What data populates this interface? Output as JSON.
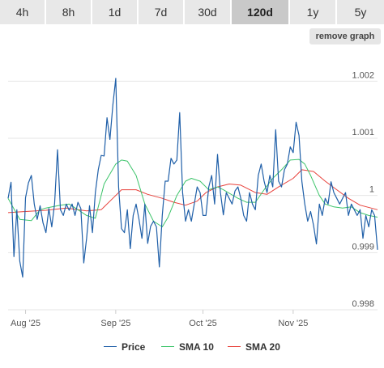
{
  "tabs": [
    {
      "label": "4h",
      "active": false
    },
    {
      "label": "8h",
      "active": false
    },
    {
      "label": "1d",
      "active": false
    },
    {
      "label": "7d",
      "active": false
    },
    {
      "label": "30d",
      "active": false
    },
    {
      "label": "120d",
      "active": true
    },
    {
      "label": "1y",
      "active": false
    },
    {
      "label": "5y",
      "active": false
    }
  ],
  "remove_graph_label": "remove graph",
  "colors": {
    "price": "#1f5fa8",
    "sma10": "#3cc46a",
    "sma20": "#e8413b",
    "grid": "#e6e6e6",
    "axis_text": "#555555"
  },
  "chart_data": {
    "type": "line",
    "title": "",
    "xlabel": "",
    "ylabel": "",
    "x_range": [
      "2025-07-26",
      "2025-11-30"
    ],
    "x_ticks": [
      {
        "date": "2025-08-01",
        "label": "Aug '25"
      },
      {
        "date": "2025-09-01",
        "label": "Sep '25"
      },
      {
        "date": "2025-10-01",
        "label": "Oct '25"
      },
      {
        "date": "2025-11-01",
        "label": "Nov '25"
      }
    ],
    "ylim": [
      0.998,
      1.0025
    ],
    "y_ticks": [
      {
        "value": 0.998,
        "label": "0.998"
      },
      {
        "value": 0.999,
        "label": "0.999"
      },
      {
        "value": 1.0,
        "label": "1"
      },
      {
        "value": 1.001,
        "label": "1.001"
      },
      {
        "value": 1.002,
        "label": "1.002"
      }
    ],
    "grid": true,
    "legend_position": "bottom",
    "series": [
      {
        "name": "Price",
        "points": [
          [
            "2025-07-26",
            0.99995
          ],
          [
            "2025-07-27",
            1.00023
          ],
          [
            "2025-07-28",
            0.99893
          ],
          [
            "2025-07-29",
            0.99975
          ],
          [
            "2025-07-30",
            0.99885
          ],
          [
            "2025-07-31",
            0.99857
          ],
          [
            "2025-08-01",
            0.99996
          ],
          [
            "2025-08-02",
            1.00022
          ],
          [
            "2025-08-03",
            1.00035
          ],
          [
            "2025-08-04",
            0.99985
          ],
          [
            "2025-08-05",
            0.99958
          ],
          [
            "2025-08-06",
            0.99982
          ],
          [
            "2025-08-07",
            0.99952
          ],
          [
            "2025-08-08",
            0.99935
          ],
          [
            "2025-08-09",
            0.99977
          ],
          [
            "2025-08-10",
            0.99945
          ],
          [
            "2025-08-11",
            0.99986
          ],
          [
            "2025-08-12",
            1.0008
          ],
          [
            "2025-08-13",
            0.99975
          ],
          [
            "2025-08-14",
            0.99965
          ],
          [
            "2025-08-15",
            0.99985
          ],
          [
            "2025-08-16",
            0.99974
          ],
          [
            "2025-08-17",
            0.99985
          ],
          [
            "2025-08-18",
            0.99965
          ],
          [
            "2025-08-19",
            0.99988
          ],
          [
            "2025-08-20",
            0.99977
          ],
          [
            "2025-08-21",
            0.99882
          ],
          [
            "2025-08-22",
            0.99925
          ],
          [
            "2025-08-23",
            0.99982
          ],
          [
            "2025-08-24",
            0.99935
          ],
          [
            "2025-08-25",
            1.00005
          ],
          [
            "2025-08-26",
            1.00045
          ],
          [
            "2025-08-27",
            1.0007
          ],
          [
            "2025-08-28",
            1.00069
          ],
          [
            "2025-08-29",
            1.00136
          ],
          [
            "2025-08-30",
            1.00098
          ],
          [
            "2025-08-31",
            1.00158
          ],
          [
            "2025-09-01",
            1.00205
          ],
          [
            "2025-09-02",
            1.00015
          ],
          [
            "2025-09-03",
            0.99942
          ],
          [
            "2025-09-04",
            0.99935
          ],
          [
            "2025-09-05",
            0.99975
          ],
          [
            "2025-09-06",
            0.99907
          ],
          [
            "2025-09-07",
            0.99965
          ],
          [
            "2025-09-08",
            0.99985
          ],
          [
            "2025-09-09",
            0.99958
          ],
          [
            "2025-09-10",
            0.99925
          ],
          [
            "2025-09-11",
            0.99985
          ],
          [
            "2025-09-12",
            0.99916
          ],
          [
            "2025-09-13",
            0.99946
          ],
          [
            "2025-09-14",
            0.99955
          ],
          [
            "2025-09-15",
            0.99945
          ],
          [
            "2025-09-16",
            0.99875
          ],
          [
            "2025-09-17",
            0.99965
          ],
          [
            "2025-09-18",
            1.00025
          ],
          [
            "2025-09-19",
            1.00025
          ],
          [
            "2025-09-20",
            1.00065
          ],
          [
            "2025-09-21",
            1.00055
          ],
          [
            "2025-09-22",
            1.00062
          ],
          [
            "2025-09-23",
            1.00145
          ],
          [
            "2025-09-24",
            1.00005
          ],
          [
            "2025-09-25",
            0.99955
          ],
          [
            "2025-09-26",
            0.99975
          ],
          [
            "2025-09-27",
            0.99955
          ],
          [
            "2025-09-28",
            0.99985
          ],
          [
            "2025-09-29",
            1.00015
          ],
          [
            "2025-09-30",
            1.00005
          ],
          [
            "2025-10-01",
            0.99965
          ],
          [
            "2025-10-02",
            0.99965
          ],
          [
            "2025-10-03",
            1.00015
          ],
          [
            "2025-10-04",
            1.00035
          ],
          [
            "2025-10-05",
            0.99985
          ],
          [
            "2025-10-06",
            1.00072
          ],
          [
            "2025-10-07",
            1.00005
          ],
          [
            "2025-10-08",
            0.99966
          ],
          [
            "2025-10-09",
            1.00005
          ],
          [
            "2025-10-10",
            0.99995
          ],
          [
            "2025-10-11",
            0.99985
          ],
          [
            "2025-10-12",
            1.00008
          ],
          [
            "2025-10-13",
            1.00015
          ],
          [
            "2025-10-14",
            0.99995
          ],
          [
            "2025-10-15",
            0.99965
          ],
          [
            "2025-10-16",
            0.99955
          ],
          [
            "2025-10-17",
            1.00005
          ],
          [
            "2025-10-18",
            0.99985
          ],
          [
            "2025-10-19",
            0.99975
          ],
          [
            "2025-10-20",
            1.00035
          ],
          [
            "2025-10-21",
            1.00055
          ],
          [
            "2025-10-22",
            1.00025
          ],
          [
            "2025-10-23",
            1.00005
          ],
          [
            "2025-10-24",
            1.00035
          ],
          [
            "2025-10-25",
            1.00015
          ],
          [
            "2025-10-26",
            1.00115
          ],
          [
            "2025-10-27",
            1.00025
          ],
          [
            "2025-10-28",
            1.00015
          ],
          [
            "2025-10-29",
            1.00045
          ],
          [
            "2025-10-30",
            1.00055
          ],
          [
            "2025-10-31",
            1.00085
          ],
          [
            "2025-11-01",
            1.00075
          ],
          [
            "2025-11-02",
            1.00128
          ],
          [
            "2025-11-03",
            1.00105
          ],
          [
            "2025-11-04",
            1.00025
          ],
          [
            "2025-11-05",
            0.99985
          ],
          [
            "2025-11-06",
            0.99955
          ],
          [
            "2025-11-07",
            0.99972
          ],
          [
            "2025-11-08",
            0.99948
          ],
          [
            "2025-11-09",
            0.99915
          ],
          [
            "2025-11-10",
            0.99985
          ],
          [
            "2025-11-11",
            0.99965
          ],
          [
            "2025-11-12",
            0.99995
          ],
          [
            "2025-11-13",
            0.99985
          ],
          [
            "2025-11-14",
            1.00024
          ],
          [
            "2025-11-15",
            1.00005
          ],
          [
            "2025-11-16",
            0.99995
          ],
          [
            "2025-11-17",
            0.99985
          ],
          [
            "2025-11-18",
            0.99995
          ],
          [
            "2025-11-19",
            1.00005
          ],
          [
            "2025-11-20",
            0.99965
          ],
          [
            "2025-11-21",
            0.99985
          ],
          [
            "2025-11-22",
            0.99975
          ],
          [
            "2025-11-23",
            0.99965
          ],
          [
            "2025-11-24",
            0.99975
          ],
          [
            "2025-11-25",
            0.99925
          ],
          [
            "2025-11-26",
            0.99965
          ],
          [
            "2025-11-27",
            0.99945
          ],
          [
            "2025-11-28",
            0.99975
          ],
          [
            "2025-11-29",
            0.99965
          ],
          [
            "2025-11-30",
            0.99905
          ]
        ]
      },
      {
        "name": "SMA 10",
        "points": [
          [
            "2025-07-26",
            0.99995
          ],
          [
            "2025-07-30",
            0.99958
          ],
          [
            "2025-08-03",
            0.99956
          ],
          [
            "2025-08-06",
            0.99975
          ],
          [
            "2025-08-08",
            0.99978
          ],
          [
            "2025-08-11",
            0.99981
          ],
          [
            "2025-08-13",
            0.99983
          ],
          [
            "2025-08-16",
            0.99985
          ],
          [
            "2025-08-19",
            0.99975
          ],
          [
            "2025-08-22",
            0.99965
          ],
          [
            "2025-08-25",
            0.9996
          ],
          [
            "2025-08-28",
            1.0002
          ],
          [
            "2025-09-01",
            1.00055
          ],
          [
            "2025-09-03",
            1.00062
          ],
          [
            "2025-09-05",
            1.0006
          ],
          [
            "2025-09-08",
            1.00035
          ],
          [
            "2025-09-11",
            0.99985
          ],
          [
            "2025-09-14",
            0.99955
          ],
          [
            "2025-09-17",
            0.99945
          ],
          [
            "2025-09-19",
            0.99962
          ],
          [
            "2025-09-22",
            1.0
          ],
          [
            "2025-09-25",
            1.00025
          ],
          [
            "2025-09-27",
            1.0003
          ],
          [
            "2025-09-30",
            1.00025
          ],
          [
            "2025-10-03",
            1.0001
          ],
          [
            "2025-10-06",
            1.00015
          ],
          [
            "2025-10-08",
            1.0001
          ],
          [
            "2025-10-11",
            1.00001
          ],
          [
            "2025-10-13",
            0.99995
          ],
          [
            "2025-10-16",
            0.99988
          ],
          [
            "2025-10-19",
            0.99988
          ],
          [
            "2025-10-22",
            1.0001
          ],
          [
            "2025-10-25",
            1.0003
          ],
          [
            "2025-10-28",
            1.00045
          ],
          [
            "2025-10-31",
            1.00062
          ],
          [
            "2025-11-03",
            1.00063
          ],
          [
            "2025-11-05",
            1.00055
          ],
          [
            "2025-11-07",
            1.00035
          ],
          [
            "2025-11-10",
            1.0
          ],
          [
            "2025-11-12",
            0.99985
          ],
          [
            "2025-11-15",
            0.9998
          ],
          [
            "2025-11-18",
            0.99978
          ],
          [
            "2025-11-21",
            0.9998
          ],
          [
            "2025-11-24",
            0.9997
          ],
          [
            "2025-11-27",
            0.99965
          ],
          [
            "2025-11-30",
            0.99962
          ]
        ]
      },
      {
        "name": "SMA 20",
        "points": [
          [
            "2025-07-26",
            0.9997
          ],
          [
            "2025-08-01",
            0.99972
          ],
          [
            "2025-08-08",
            0.99974
          ],
          [
            "2025-08-15",
            0.99978
          ],
          [
            "2025-08-22",
            0.99973
          ],
          [
            "2025-08-27",
            0.99975
          ],
          [
            "2025-08-31",
            0.99995
          ],
          [
            "2025-09-03",
            1.0001
          ],
          [
            "2025-09-08",
            1.0001
          ],
          [
            "2025-09-12",
            1.00002
          ],
          [
            "2025-09-17",
            0.99995
          ],
          [
            "2025-09-21",
            0.99988
          ],
          [
            "2025-09-25",
            0.99983
          ],
          [
            "2025-09-29",
            0.9999
          ],
          [
            "2025-10-02",
            1.00005
          ],
          [
            "2025-10-06",
            1.00015
          ],
          [
            "2025-10-10",
            1.0002
          ],
          [
            "2025-10-14",
            1.00018
          ],
          [
            "2025-10-19",
            1.00005
          ],
          [
            "2025-10-23",
            1.00002
          ],
          [
            "2025-10-27",
            1.00015
          ],
          [
            "2025-11-01",
            1.0003
          ],
          [
            "2025-11-04",
            1.00045
          ],
          [
            "2025-11-08",
            1.00042
          ],
          [
            "2025-11-12",
            1.00025
          ],
          [
            "2025-11-16",
            1.0001
          ],
          [
            "2025-11-20",
            0.99995
          ],
          [
            "2025-11-24",
            0.99983
          ],
          [
            "2025-11-30",
            0.99975
          ]
        ]
      }
    ]
  }
}
